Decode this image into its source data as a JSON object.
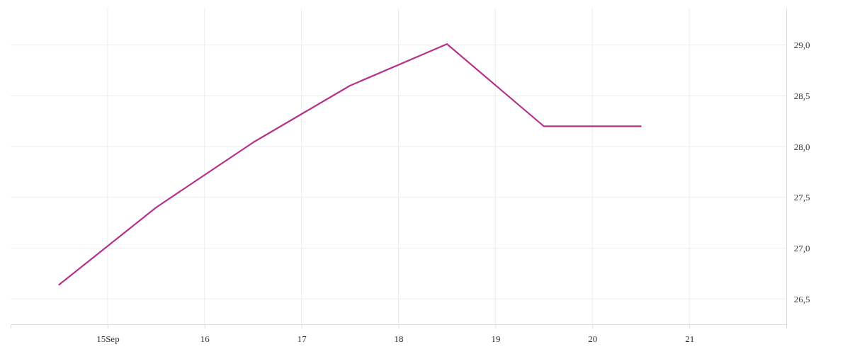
{
  "chart_data": {
    "type": "line",
    "x": [
      14.5,
      15.5,
      16.5,
      17.5,
      18.5,
      19.5,
      20.5
    ],
    "series": [
      {
        "color": "#b5338a",
        "values": [
          26.64,
          27.4,
          28.04,
          28.6,
          29.01,
          28.2,
          28.2
        ]
      }
    ],
    "xlim": [
      14,
      22
    ],
    "xticks": [
      {
        "value": 15,
        "label": "15Sep"
      },
      16,
      17,
      18,
      19,
      20,
      21
    ],
    "ylim": [
      26.25,
      29.36
    ],
    "yticks": [
      {
        "value": 26.5,
        "label": "26,5"
      },
      {
        "value": 27,
        "label": "27,0"
      },
      {
        "value": 27.5,
        "label": "27,5"
      },
      {
        "value": 28,
        "label": "28,0"
      },
      {
        "value": 28.5,
        "label": "28,5"
      },
      {
        "value": 29,
        "label": "29,0"
      }
    ],
    "grid": true,
    "marker": "none",
    "line_style": "solid"
  }
}
